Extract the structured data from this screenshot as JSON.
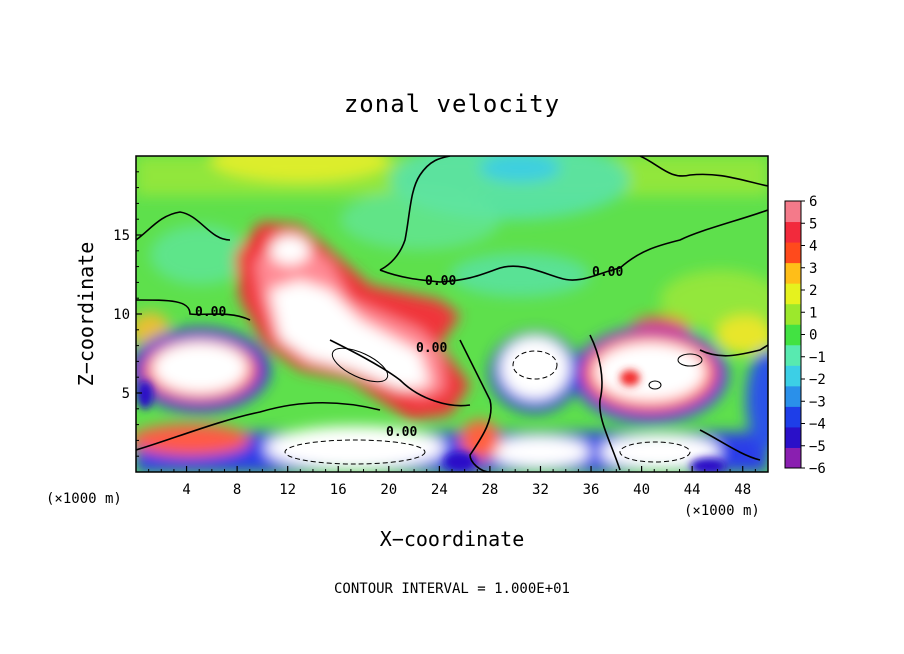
{
  "chart_data": {
    "type": "heatmap",
    "title": "zonal velocity",
    "xlabel": "X−coordinate",
    "ylabel": "Z−coordinate",
    "x_unit": "(×1000 m)",
    "y_unit": "(×1000 m)",
    "xlim": [
      0,
      50
    ],
    "ylim": [
      0,
      20
    ],
    "x_ticks": [
      "4",
      "8",
      "12",
      "16",
      "20",
      "24",
      "28",
      "32",
      "36",
      "40",
      "44",
      "48"
    ],
    "y_ticks": [
      "5",
      "10",
      "15"
    ],
    "colorbar": {
      "min": -6,
      "max": 6,
      "ticks": [
        "6",
        "5",
        "4",
        "3",
        "2",
        "1",
        "0",
        "−1",
        "−2",
        "−3",
        "−4",
        "−5",
        "−6"
      ],
      "colors": [
        "#8a1fb0",
        "#2a10c8",
        "#1e3ee8",
        "#2a90ea",
        "#3ccfe6",
        "#58eab0",
        "#42e242",
        "#9ce82c",
        "#e6f21e",
        "#ffbe18",
        "#ff4a1c",
        "#f22a3c",
        "#f47a8a"
      ]
    },
    "contour_labels": [
      "0.00",
      "0.00",
      "0.00",
      "0.00",
      "0.00"
    ],
    "contour_interval_text": "CONTOUR INTERVAL = 1.000E+01",
    "grid": false,
    "legend": "right (colorbar)"
  }
}
